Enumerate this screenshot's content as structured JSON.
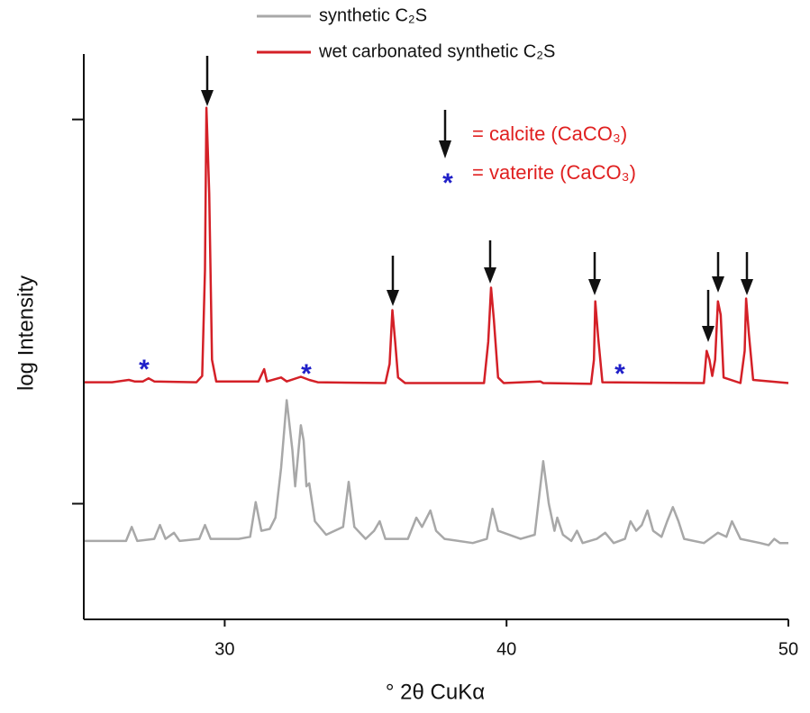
{
  "chart_data": {
    "type": "line",
    "x_label": "° 2θ CuKα",
    "y_label": "log Intensity",
    "xlim": [
      25,
      50
    ],
    "xticks": [
      30,
      40,
      50
    ],
    "ylim": [
      50,
      1480
    ],
    "yticks": [
      100,
      1000
    ],
    "log_y": true,
    "legend_position": "top",
    "annotations": [
      "= calcite (CaCO₃)",
      "= vaterite (CaCO₃)"
    ],
    "series": [
      {
        "name": "synthetic C₂S",
        "color": "#a8a8a8",
        "x": [
          25.0,
          26.5,
          26.7,
          26.9,
          27.5,
          27.7,
          27.9,
          28.2,
          28.4,
          29.1,
          29.3,
          29.5,
          30.5,
          30.9,
          31.1,
          31.3,
          31.6,
          31.8,
          32.0,
          32.2,
          32.4,
          32.5,
          32.7,
          32.8,
          32.9,
          33.0,
          33.2,
          33.6,
          34.2,
          34.4,
          34.6,
          35.0,
          35.3,
          35.5,
          35.7,
          36.5,
          36.8,
          37.0,
          37.3,
          37.5,
          37.8,
          38.8,
          39.3,
          39.5,
          39.7,
          40.5,
          41.0,
          41.3,
          41.5,
          41.7,
          41.8,
          42.0,
          42.3,
          42.5,
          42.7,
          43.2,
          43.5,
          43.8,
          44.2,
          44.4,
          44.6,
          44.8,
          45.0,
          45.2,
          45.5,
          45.7,
          45.9,
          46.1,
          46.3,
          47.0,
          47.5,
          47.8,
          48.0,
          48.3,
          49.0,
          49.3,
          49.5,
          49.7,
          50.0
        ],
        "values": [
          80,
          80,
          87,
          80,
          81,
          88,
          81,
          84,
          80,
          81,
          88,
          81,
          81,
          82,
          101,
          85,
          86,
          92,
          124,
          186,
          138,
          111,
          160,
          146,
          111,
          113,
          90,
          83,
          87,
          114,
          87,
          81,
          85,
          90,
          81,
          81,
          92,
          87,
          96,
          85,
          81,
          79,
          81,
          97,
          85,
          81,
          83,
          129,
          100,
          85,
          92,
          83,
          80,
          85,
          79,
          81,
          84,
          79,
          81,
          90,
          85,
          88,
          96,
          85,
          82,
          90,
          98,
          90,
          81,
          79,
          84,
          82,
          90,
          81,
          79,
          78,
          81,
          79,
          79
        ]
      },
      {
        "name": "wet carbonated synthetic C₂S",
        "color": "#d42027",
        "x": [
          25.0,
          26.0,
          26.6,
          26.8,
          27.1,
          27.3,
          27.5,
          29.0,
          29.2,
          29.3,
          29.35,
          29.45,
          29.55,
          29.7,
          31.2,
          31.4,
          31.5,
          32.0,
          32.2,
          32.7,
          33.0,
          33.3,
          35.7,
          35.85,
          35.95,
          36.05,
          36.15,
          36.4,
          39.2,
          39.35,
          39.45,
          39.55,
          39.7,
          39.9,
          41.2,
          41.3,
          43.0,
          43.1,
          43.15,
          43.25,
          43.4,
          47.0,
          47.1,
          47.2,
          47.3,
          47.4,
          47.5,
          47.6,
          47.7,
          48.3,
          48.45,
          48.5,
          48.6,
          48.75,
          50.0
        ],
        "values": [
          207,
          207,
          210,
          208,
          208,
          212,
          208,
          207,
          215,
          406,
          1072,
          643,
          237,
          208,
          208,
          224,
          208,
          213,
          208,
          214,
          210,
          207,
          206,
          231,
          319,
          264,
          213,
          206,
          206,
          264,
          365,
          302,
          213,
          206,
          208,
          206,
          205,
          237,
          336,
          271,
          207,
          206,
          250,
          237,
          215,
          237,
          336,
          310,
          213,
          206,
          250,
          342,
          276,
          210,
          206
        ]
      }
    ]
  }
}
